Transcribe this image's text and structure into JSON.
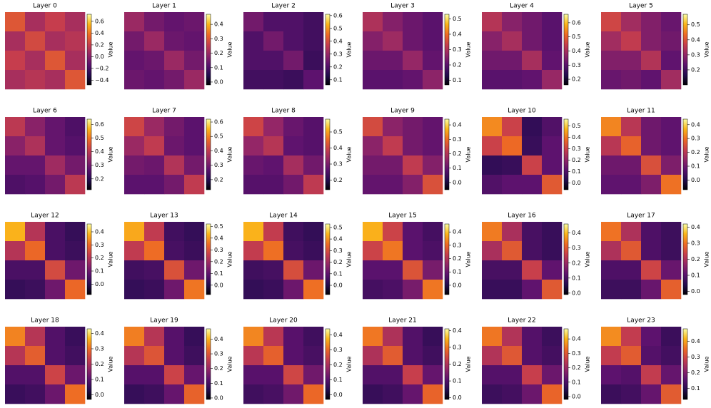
{
  "chart_data": [
    {
      "type": "heatmap",
      "title": "Layer 0",
      "colorbar_label": "Value",
      "clim": [
        -0.48,
        0.72
      ],
      "ticks": [
        {
          "value": -0.4,
          "label": "−0.4"
        },
        {
          "value": -0.2,
          "label": "−0.2"
        },
        {
          "value": 0,
          "label": "0.0"
        },
        0.2,
        0.4,
        0.6
      ],
      "values": [
        [
          0.3,
          0.1,
          0.2,
          0.1
        ],
        [
          0.1,
          0.25,
          0.1,
          0.15
        ],
        [
          0.2,
          0.1,
          0.3,
          0.1
        ],
        [
          0.1,
          0.15,
          0.1,
          0.3
        ]
      ]
    },
    {
      "type": "heatmap",
      "title": "Layer 1",
      "colorbar_label": "Value",
      "clim": [
        -0.02,
        0.47
      ],
      "ticks": [
        {
          "value": 0,
          "label": "0.0"
        },
        0.1,
        0.2,
        0.3,
        0.4
      ],
      "values": [
        [
          0.2,
          0.15,
          0.13,
          0.14
        ],
        [
          0.15,
          0.2,
          0.14,
          0.13
        ],
        [
          0.13,
          0.14,
          0.2,
          0.15
        ],
        [
          0.14,
          0.13,
          0.15,
          0.2
        ]
      ]
    },
    {
      "type": "heatmap",
      "title": "Layer 2",
      "colorbar_label": "Value",
      "clim": [
        0.06,
        0.61
      ],
      "ticks": [
        0.1,
        0.2,
        0.3,
        0.4,
        0.5,
        0.6
      ],
      "values": [
        [
          0.25,
          0.2,
          0.2,
          0.18
        ],
        [
          0.2,
          0.25,
          0.2,
          0.18
        ],
        [
          0.2,
          0.2,
          0.25,
          0.17
        ],
        [
          0.18,
          0.18,
          0.17,
          0.22
        ]
      ]
    },
    {
      "type": "heatmap",
      "title": "Layer 3",
      "colorbar_label": "Value",
      "clim": [
        0.07,
        0.53
      ],
      "ticks": [
        0.1,
        0.2,
        0.3,
        0.4,
        0.5
      ],
      "values": [
        [
          0.3,
          0.25,
          0.22,
          0.2
        ],
        [
          0.25,
          0.28,
          0.22,
          0.2
        ],
        [
          0.22,
          0.22,
          0.27,
          0.21
        ],
        [
          0.2,
          0.2,
          0.21,
          0.26
        ]
      ]
    },
    {
      "type": "heatmap",
      "title": "Layer 4",
      "colorbar_label": "Value",
      "clim": [
        0.16,
        0.66
      ],
      "ticks": [
        0.2,
        0.3,
        0.4,
        0.5,
        0.6
      ],
      "values": [
        [
          0.42,
          0.36,
          0.33,
          0.3
        ],
        [
          0.36,
          0.4,
          0.33,
          0.3
        ],
        [
          0.33,
          0.33,
          0.4,
          0.31
        ],
        [
          0.3,
          0.3,
          0.31,
          0.38
        ]
      ]
    },
    {
      "type": "heatmap",
      "title": "Layer 5",
      "colorbar_label": "Value",
      "clim": [
        0.1,
        0.57
      ],
      "ticks": [
        0.2,
        0.3,
        0.4,
        0.5
      ],
      "values": [
        [
          0.38,
          0.32,
          0.28,
          0.25
        ],
        [
          0.32,
          0.36,
          0.28,
          0.26
        ],
        [
          0.28,
          0.28,
          0.34,
          0.24
        ],
        [
          0.25,
          0.26,
          0.24,
          0.32
        ]
      ]
    },
    {
      "type": "heatmap",
      "title": "Layer 6",
      "colorbar_label": "Value",
      "clim": [
        0.12,
        0.64
      ],
      "ticks": [
        0.2,
        0.3,
        0.4,
        0.5,
        0.6
      ],
      "values": [
        [
          0.4,
          0.33,
          0.28,
          0.25
        ],
        [
          0.33,
          0.38,
          0.28,
          0.26
        ],
        [
          0.28,
          0.28,
          0.36,
          0.3
        ],
        [
          0.25,
          0.26,
          0.3,
          0.4
        ]
      ]
    },
    {
      "type": "heatmap",
      "title": "Layer 7",
      "colorbar_label": "Value",
      "clim": [
        0.13,
        0.62
      ],
      "ticks": [
        0.2,
        0.3,
        0.4,
        0.5,
        0.6
      ],
      "values": [
        [
          0.42,
          0.35,
          0.3,
          0.27
        ],
        [
          0.35,
          0.4,
          0.29,
          0.27
        ],
        [
          0.3,
          0.29,
          0.38,
          0.3
        ],
        [
          0.27,
          0.27,
          0.3,
          0.4
        ]
      ]
    },
    {
      "type": "heatmap",
      "title": "Layer 8",
      "colorbar_label": "Value",
      "clim": [
        0.14,
        0.58
      ],
      "ticks": [
        0.2,
        0.3,
        0.4,
        0.5
      ],
      "values": [
        [
          0.4,
          0.33,
          0.28,
          0.26
        ],
        [
          0.33,
          0.37,
          0.27,
          0.26
        ],
        [
          0.28,
          0.27,
          0.35,
          0.29
        ],
        [
          0.26,
          0.26,
          0.29,
          0.38
        ]
      ]
    },
    {
      "type": "heatmap",
      "title": "Layer 9",
      "colorbar_label": "Value",
      "clim": [
        -0.05,
        0.44
      ],
      "ticks": [
        {
          "value": 0,
          "label": "0.0"
        },
        0.1,
        0.2,
        0.3,
        0.4
      ],
      "values": [
        [
          0.25,
          0.15,
          0.12,
          0.1
        ],
        [
          0.15,
          0.22,
          0.12,
          0.1
        ],
        [
          0.12,
          0.12,
          0.22,
          0.14
        ],
        [
          0.1,
          0.1,
          0.14,
          0.26
        ]
      ]
    },
    {
      "type": "heatmap",
      "title": "Layer 10",
      "colorbar_label": "Value",
      "clim": [
        -0.06,
        0.56
      ],
      "ticks": [
        {
          "value": 0,
          "label": "0.0"
        },
        0.1,
        0.2,
        0.3,
        0.4,
        0.5
      ],
      "values": [
        [
          0.42,
          0.3,
          0.05,
          0.1
        ],
        [
          0.3,
          0.38,
          0.06,
          0.12
        ],
        [
          0.05,
          0.06,
          0.3,
          0.12
        ],
        [
          0.1,
          0.12,
          0.12,
          0.35
        ]
      ]
    },
    {
      "type": "heatmap",
      "title": "Layer 11",
      "colorbar_label": "Value",
      "clim": [
        -0.07,
        0.44
      ],
      "ticks": [
        {
          "value": 0,
          "label": "0.0"
        },
        0.1,
        0.2,
        0.3,
        0.4
      ],
      "values": [
        [
          0.32,
          0.2,
          0.1,
          0.08
        ],
        [
          0.2,
          0.28,
          0.1,
          0.08
        ],
        [
          0.1,
          0.1,
          0.25,
          0.12
        ],
        [
          0.08,
          0.08,
          0.12,
          0.3
        ]
      ]
    },
    {
      "type": "heatmap",
      "title": "Layer 12",
      "colorbar_label": "Value",
      "clim": [
        -0.08,
        0.46
      ],
      "ticks": [
        {
          "value": 0,
          "label": "0.0"
        },
        0.1,
        0.2,
        0.3,
        0.4
      ],
      "values": [
        [
          0.38,
          0.2,
          0.05,
          0.02
        ],
        [
          0.2,
          0.3,
          0.05,
          0.03
        ],
        [
          0.05,
          0.05,
          0.25,
          0.1
        ],
        [
          0.02,
          0.03,
          0.1,
          0.3
        ]
      ]
    },
    {
      "type": "heatmap",
      "title": "Layer 13",
      "colorbar_label": "Value",
      "clim": [
        -0.08,
        0.52
      ],
      "ticks": [
        {
          "value": 0,
          "label": "0.0"
        },
        0.1,
        0.2,
        0.3,
        0.4,
        0.5
      ],
      "values": [
        [
          0.42,
          0.25,
          0.05,
          0.03
        ],
        [
          0.25,
          0.35,
          0.06,
          0.04
        ],
        [
          0.05,
          0.06,
          0.3,
          0.12
        ],
        [
          0.03,
          0.04,
          0.12,
          0.36
        ]
      ]
    },
    {
      "type": "heatmap",
      "title": "Layer 14",
      "colorbar_label": "Value",
      "clim": [
        -0.08,
        0.53
      ],
      "ticks": [
        {
          "value": 0,
          "label": "0.0"
        },
        0.1,
        0.2,
        0.3,
        0.4,
        0.5
      ],
      "values": [
        [
          0.44,
          0.26,
          0.05,
          0.03
        ],
        [
          0.26,
          0.36,
          0.06,
          0.04
        ],
        [
          0.05,
          0.06,
          0.3,
          0.12
        ],
        [
          0.03,
          0.04,
          0.12,
          0.36
        ]
      ]
    },
    {
      "type": "heatmap",
      "title": "Layer 15",
      "colorbar_label": "Value",
      "clim": [
        -0.07,
        0.46
      ],
      "ticks": [
        {
          "value": 0,
          "label": "0.0"
        },
        0.1,
        0.2,
        0.3,
        0.4
      ],
      "values": [
        [
          0.38,
          0.24,
          0.08,
          0.05
        ],
        [
          0.24,
          0.32,
          0.08,
          0.06
        ],
        [
          0.08,
          0.08,
          0.27,
          0.12
        ],
        [
          0.05,
          0.06,
          0.12,
          0.32
        ]
      ]
    },
    {
      "type": "heatmap",
      "title": "Layer 16",
      "colorbar_label": "Value",
      "clim": [
        -0.01,
        0.46
      ],
      "ticks": [
        {
          "value": 0,
          "label": "0.0"
        },
        0.1,
        0.2,
        0.3,
        0.4
      ],
      "values": [
        [
          0.34,
          0.22,
          0.1,
          0.08
        ],
        [
          0.22,
          0.3,
          0.1,
          0.08
        ],
        [
          0.1,
          0.1,
          0.26,
          0.13
        ],
        [
          0.08,
          0.08,
          0.13,
          0.3
        ]
      ]
    },
    {
      "type": "heatmap",
      "title": "Layer 17",
      "colorbar_label": "Value",
      "clim": [
        -0.02,
        0.42
      ],
      "ticks": [
        {
          "value": 0,
          "label": "0.0"
        },
        0.1,
        0.2,
        0.3,
        0.4
      ],
      "values": [
        [
          0.3,
          0.2,
          0.09,
          0.07
        ],
        [
          0.2,
          0.27,
          0.09,
          0.07
        ],
        [
          0.09,
          0.09,
          0.24,
          0.12
        ],
        [
          0.07,
          0.07,
          0.12,
          0.28
        ]
      ]
    },
    {
      "type": "heatmap",
      "title": "Layer 18",
      "colorbar_label": "Value",
      "clim": [
        -0.03,
        0.43
      ],
      "ticks": [
        {
          "value": 0,
          "label": "0.0"
        },
        0.1,
        0.2,
        0.3,
        0.4
      ],
      "values": [
        [
          0.32,
          0.21,
          0.09,
          0.06
        ],
        [
          0.21,
          0.28,
          0.09,
          0.07
        ],
        [
          0.09,
          0.09,
          0.24,
          0.12
        ],
        [
          0.06,
          0.07,
          0.12,
          0.3
        ]
      ]
    },
    {
      "type": "heatmap",
      "title": "Layer 19",
      "colorbar_label": "Value",
      "clim": [
        -0.01,
        0.47
      ],
      "ticks": [
        {
          "value": 0,
          "label": "0.0"
        },
        0.1,
        0.2,
        0.3,
        0.4
      ],
      "values": [
        [
          0.35,
          0.24,
          0.12,
          0.08
        ],
        [
          0.24,
          0.3,
          0.12,
          0.09
        ],
        [
          0.12,
          0.12,
          0.27,
          0.14
        ],
        [
          0.08,
          0.09,
          0.14,
          0.32
        ]
      ]
    },
    {
      "type": "heatmap",
      "title": "Layer 20",
      "colorbar_label": "Value",
      "clim": [
        -0.03,
        0.44
      ],
      "ticks": [
        {
          "value": 0,
          "label": "0.0"
        },
        0.1,
        0.2,
        0.3,
        0.4
      ],
      "values": [
        [
          0.33,
          0.22,
          0.1,
          0.07
        ],
        [
          0.22,
          0.29,
          0.1,
          0.08
        ],
        [
          0.1,
          0.1,
          0.25,
          0.13
        ],
        [
          0.07,
          0.08,
          0.13,
          0.3
        ]
      ]
    },
    {
      "type": "heatmap",
      "title": "Layer 21",
      "colorbar_label": "Value",
      "clim": [
        -0.01,
        0.41
      ],
      "ticks": [
        {
          "value": 0,
          "label": "0.0"
        },
        0.1,
        0.2,
        0.3,
        0.4
      ],
      "values": [
        [
          0.3,
          0.2,
          0.1,
          0.07
        ],
        [
          0.2,
          0.27,
          0.1,
          0.08
        ],
        [
          0.1,
          0.1,
          0.23,
          0.12
        ],
        [
          0.07,
          0.08,
          0.12,
          0.28
        ]
      ]
    },
    {
      "type": "heatmap",
      "title": "Layer 22",
      "colorbar_label": "Value",
      "clim": [
        -0.02,
        0.47
      ],
      "ticks": [
        {
          "value": 0,
          "label": "0.0"
        },
        0.1,
        0.2,
        0.3,
        0.4
      ],
      "values": [
        [
          0.34,
          0.23,
          0.11,
          0.08
        ],
        [
          0.23,
          0.3,
          0.11,
          0.09
        ],
        [
          0.11,
          0.11,
          0.26,
          0.14
        ],
        [
          0.08,
          0.09,
          0.14,
          0.32
        ]
      ]
    },
    {
      "type": "heatmap",
      "title": "Layer 23",
      "colorbar_label": "Value",
      "clim": [
        0.03,
        0.48
      ],
      "ticks": [
        0.1,
        0.2,
        0.3,
        0.4
      ],
      "values": [
        [
          0.38,
          0.28,
          0.16,
          0.12
        ],
        [
          0.28,
          0.33,
          0.15,
          0.13
        ],
        [
          0.16,
          0.15,
          0.28,
          0.17
        ],
        [
          0.12,
          0.13,
          0.17,
          0.33
        ]
      ]
    }
  ]
}
